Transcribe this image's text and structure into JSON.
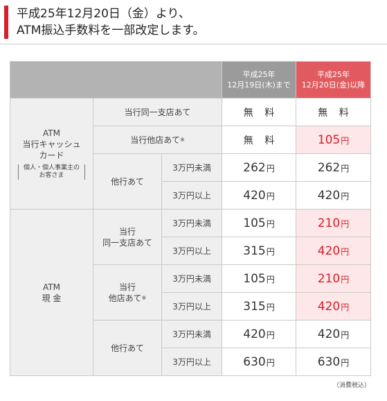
{
  "header": {
    "line1": "平成25年12月20日（金）より、",
    "line2": "ATM振込手数料を一部改定します。"
  },
  "table": {
    "head_before_l1": "平成25年",
    "head_before_l2": "12月19日(木)まで",
    "head_after_l1": "平成25年",
    "head_after_l2": "12月20日(金)以降",
    "card_group_l1": "ATM",
    "card_group_l2": "当行キャッシュ",
    "card_group_l3": "カード",
    "card_note_l1": "個人・個人事業主の",
    "card_note_l2": "お客さま",
    "cash_group_l1": "ATM",
    "cash_group_l2": "現 金",
    "same_branch": "当行同一支店あて",
    "other_branch": "当行他店あて",
    "asterisk": "※",
    "other_bank": "他行あて",
    "cash_same_l1": "当行",
    "cash_same_l2": "同一支店あて",
    "cash_other_l1": "当行",
    "cash_other_l2": "他店あて",
    "under_30k": "3万円未満",
    "over_30k": "3万円以上",
    "free": "無 料",
    "yen": "円",
    "card_other_after": "105",
    "card_bank_under_before": "262",
    "card_bank_under_after": "262",
    "card_bank_over_before": "420",
    "card_bank_over_after": "420",
    "cash_same_under_before": "105",
    "cash_same_under_after": "210",
    "cash_same_over_before": "315",
    "cash_same_over_after": "420",
    "cash_other_under_before": "105",
    "cash_other_under_after": "210",
    "cash_other_over_before": "315",
    "cash_other_over_after": "420",
    "cash_bank_under_before": "420",
    "cash_bank_under_after": "420",
    "cash_bank_over_before": "630",
    "cash_bank_over_after": "630"
  },
  "footer": {
    "tax_note": "（消費税込）"
  },
  "colors": {
    "accent": "#d81e2a",
    "header_after_bg": "#e05a5f",
    "header_before_bg": "#9b9b9b",
    "changed_cell_bg": "#fde7e8"
  }
}
